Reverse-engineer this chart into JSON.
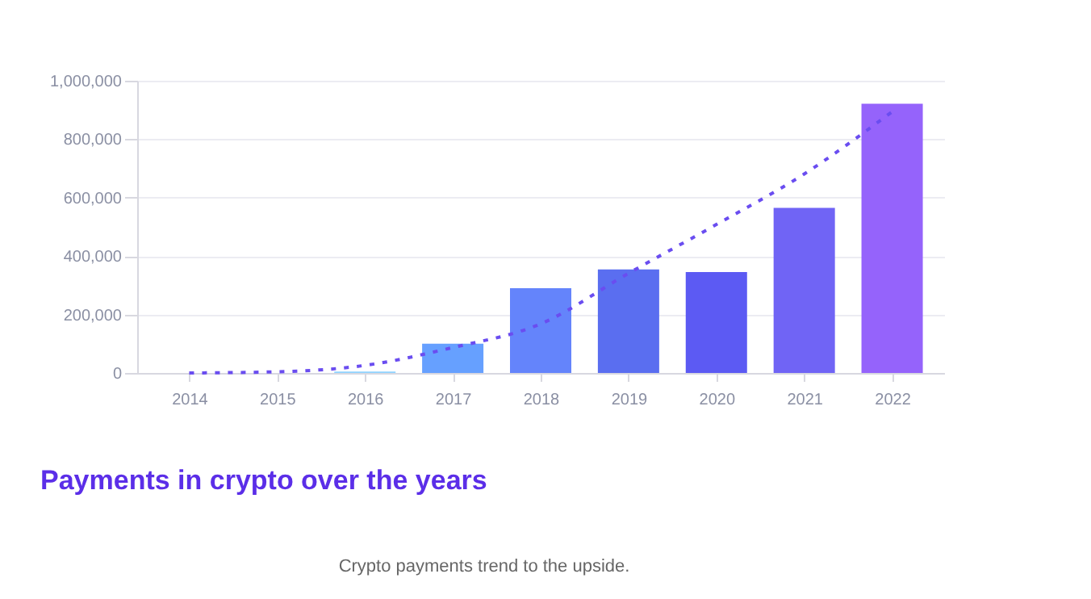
{
  "chart_data": {
    "type": "bar",
    "title": "Payments in crypto over the years",
    "categories": [
      "2014",
      "2015",
      "2016",
      "2017",
      "2018",
      "2019",
      "2020",
      "2021",
      "2022"
    ],
    "series": [
      {
        "values": [
          0,
          0,
          5000,
          100000,
          290000,
          354000,
          345000,
          565000,
          921000
        ],
        "colors": [
          "#8fd3ff",
          "#8fd3ff",
          "#8fd3ff",
          "#66a0ff",
          "#6484fb",
          "#5a6ef0",
          "#5c5af3",
          "#7064f5",
          "#9563fb"
        ]
      },
      {
        "type": "line",
        "color": "#6a4df0",
        "line_style": "dashed",
        "marker": "none",
        "values": [
          0,
          4000,
          26000,
          87000,
          168000,
          341000,
          508000,
          681000,
          894000
        ]
      }
    ],
    "ylim": [
      0,
      1000000
    ],
    "yticks": [
      {
        "value": 0,
        "label": "0"
      },
      {
        "value": 200000,
        "label": "200,000"
      },
      {
        "value": 400000,
        "label": "400,000"
      },
      {
        "value": 600000,
        "label": "600,000"
      },
      {
        "value": 800000,
        "label": "800,000"
      },
      {
        "value": 1000000,
        "label": "1,000,000"
      }
    ],
    "grid": "y",
    "legend": false,
    "annotations": [
      "Crypto payments trend to the upside."
    ]
  }
}
